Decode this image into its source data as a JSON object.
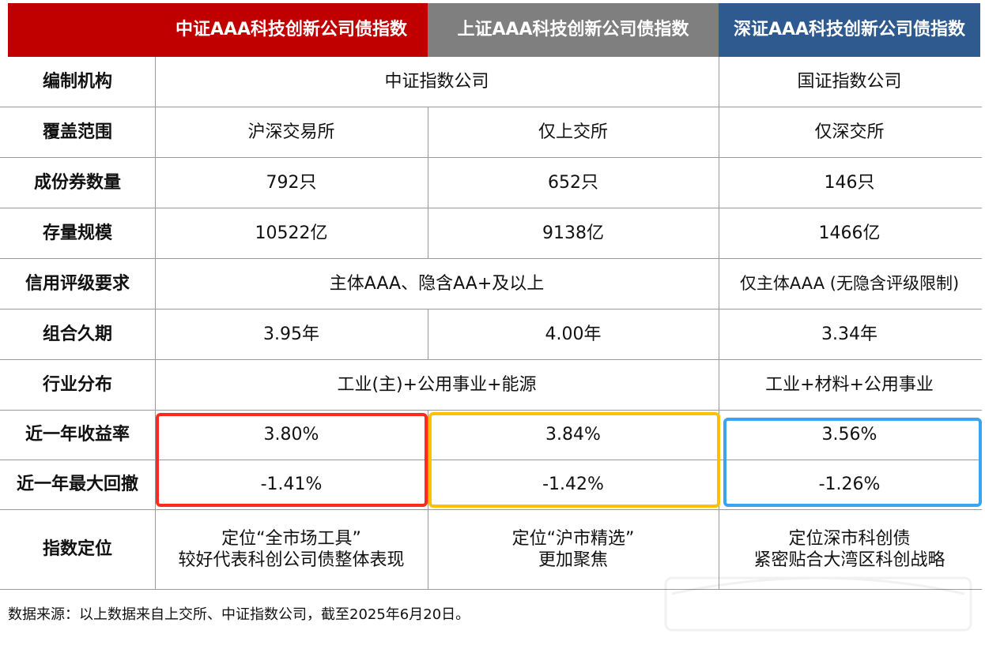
{
  "header": {
    "col1": "中证AAA科技创新公司债指数",
    "col2": "上证AAA科技创新公司债指数",
    "col3": "深证AAA科技创新公司债指数"
  },
  "colors": {
    "red": "#c00000",
    "gray": "#7f7f7f",
    "blue": "#2e5a8f",
    "highlight_red": "#ff2a1f",
    "highlight_yellow": "#ffc000",
    "highlight_blue": "#3ba3f0"
  },
  "rows": {
    "compiler": {
      "label": "编制机构",
      "sh_sz": "中证指数公司",
      "sz": "国证指数公司"
    },
    "coverage": {
      "label": "覆盖范围",
      "c1": "沪深交易所",
      "c2": "仅上交所",
      "c3": "仅深交所"
    },
    "count": {
      "label": "成份券数量",
      "c1": "792只",
      "c2": "652只",
      "c3": "146只"
    },
    "scale": {
      "label": "存量规模",
      "c1": "10522亿",
      "c2": "9138亿",
      "c3": "1466亿"
    },
    "rating": {
      "label": "信用评级要求",
      "c12": "主体AAA、隐含AA+及以上",
      "c3": "仅主体AAA (无隐含评级限制)"
    },
    "duration": {
      "label": "组合久期",
      "c1": "3.95年",
      "c2": "4.00年",
      "c3": "3.34年"
    },
    "industry": {
      "label": "行业分布",
      "c12": "工业(主)+公用事业+能源",
      "c3": "工业+材料+公用事业"
    },
    "return": {
      "label": "近一年收益率",
      "c1": "3.80%",
      "c2": "3.84%",
      "c3": "3.56%"
    },
    "drawdown": {
      "label": "近一年最大回撤",
      "c1": "-1.41%",
      "c2": "-1.42%",
      "c3": "-1.26%"
    },
    "position": {
      "label": "指数定位",
      "c1_line1": "定位“全市场工具”",
      "c1_line2": "较好代表科创公司债整体表现",
      "c2_line1": "定位“沪市精选”",
      "c2_line2": "更加聚焦",
      "c3_line1": "定位深市科创债",
      "c3_line2": "紧密贴合大湾区科创战略"
    }
  },
  "footnote": "数据来源：以上数据来自上交所、中证指数公司，截至2025年6月20日。"
}
